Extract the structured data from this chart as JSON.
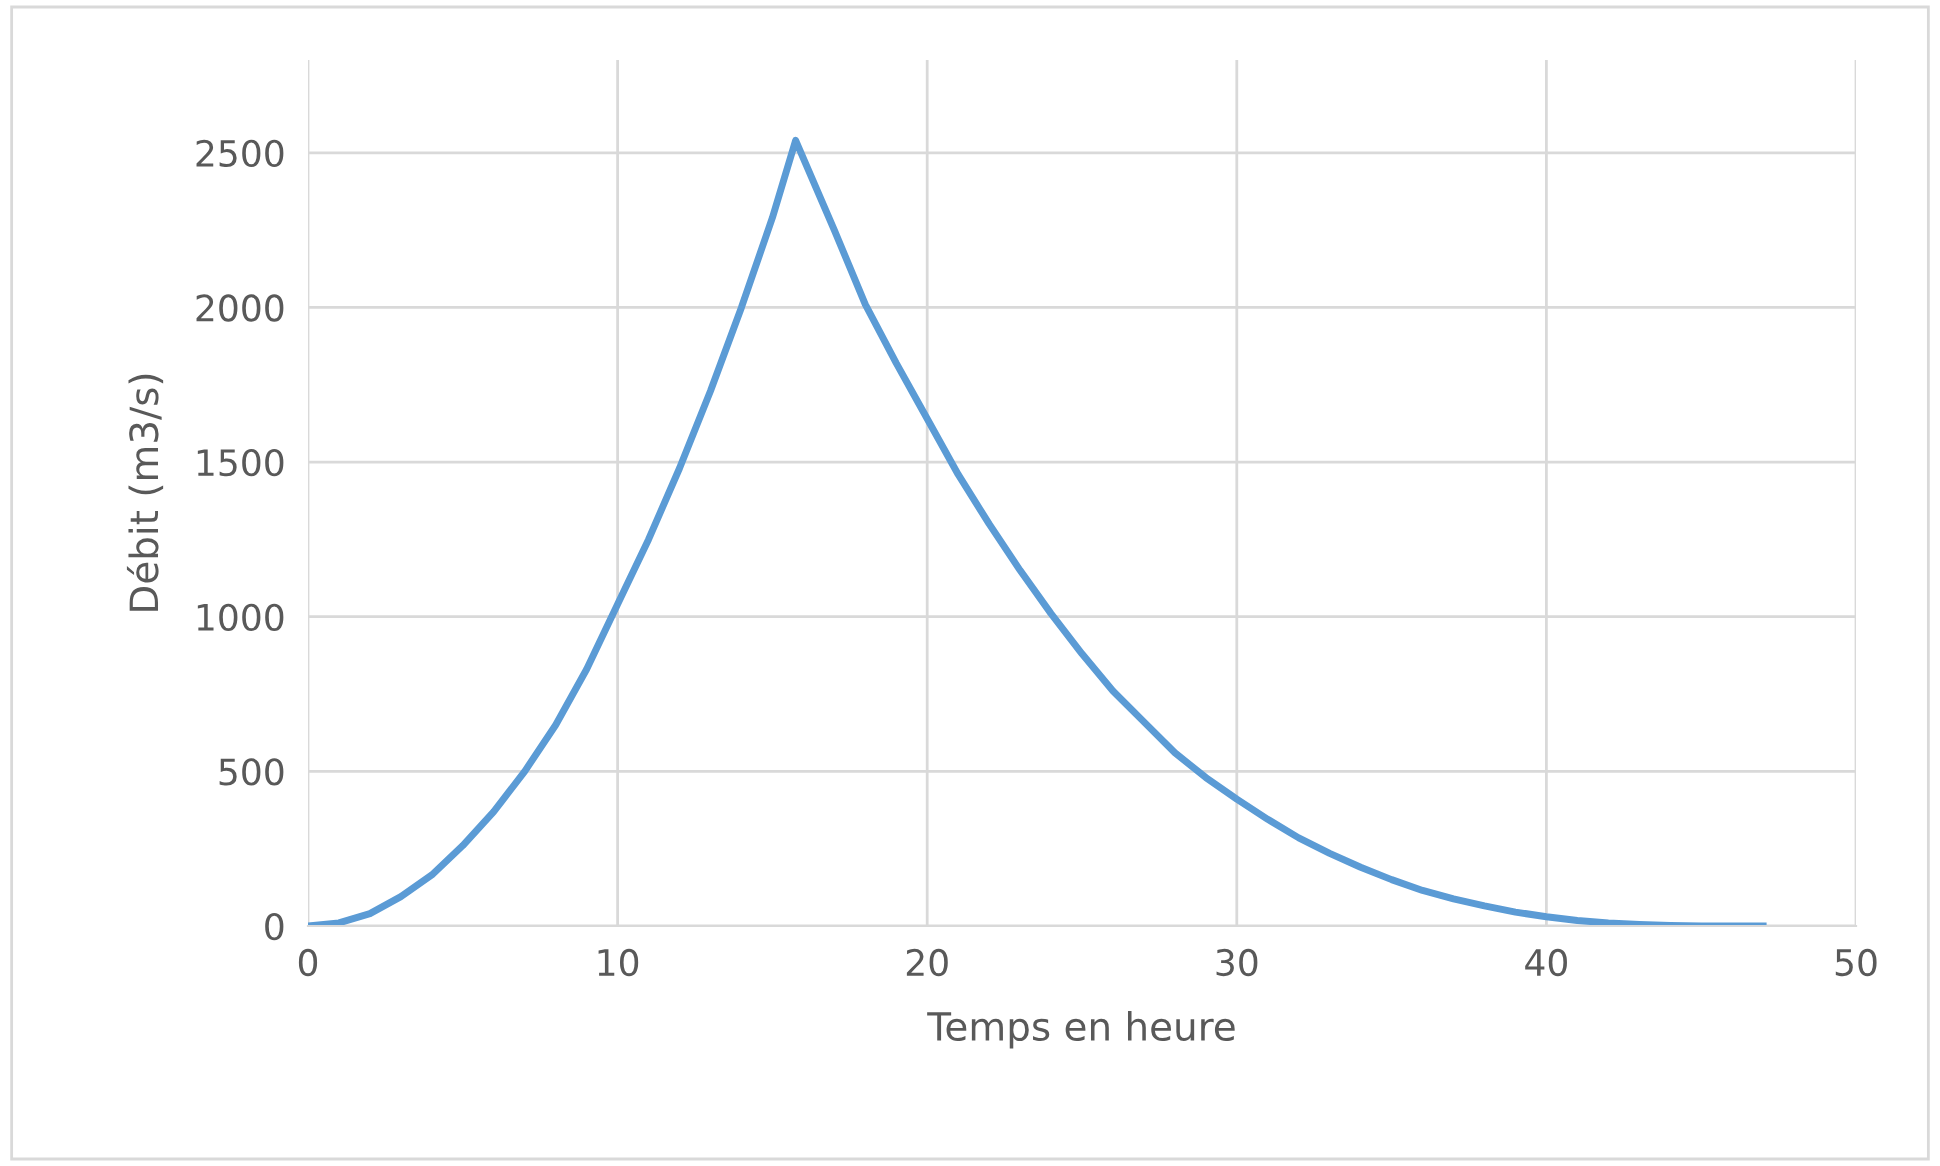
{
  "chart_data": {
    "type": "line",
    "xlabel": "Temps en heure",
    "ylabel": "Débit (m3/s)",
    "series": [
      {
        "color": "#5b9bd5",
        "x": [
          0,
          1,
          2,
          3,
          4,
          5,
          6,
          7,
          8,
          9,
          10,
          11,
          12,
          13,
          14,
          15,
          15.75,
          17,
          18,
          19,
          20,
          21,
          22,
          23,
          24,
          25,
          26,
          27,
          28,
          29,
          30,
          31,
          32,
          33,
          34,
          35,
          36,
          37,
          38,
          39,
          40,
          41,
          42,
          43,
          44,
          45,
          46,
          47
        ],
        "values": [
          0,
          10,
          40,
          95,
          165,
          260,
          370,
          500,
          650,
          830,
          1040,
          1250,
          1480,
          1730,
          2000,
          2290,
          2540,
          2250,
          2010,
          1820,
          1640,
          1460,
          1300,
          1150,
          1010,
          880,
          760,
          660,
          560,
          480,
          410,
          345,
          285,
          235,
          190,
          150,
          115,
          88,
          65,
          45,
          30,
          18,
          10,
          5,
          2,
          0,
          0,
          0
        ]
      }
    ],
    "xlim": [
      0,
      50
    ],
    "xticks": [
      0,
      10,
      20,
      30,
      40,
      50
    ],
    "ylim": [
      0,
      2800
    ],
    "yticks": [
      0,
      500,
      1000,
      1500,
      2000,
      2500
    ],
    "grid": true,
    "marker": "none",
    "line_style": "solid"
  }
}
